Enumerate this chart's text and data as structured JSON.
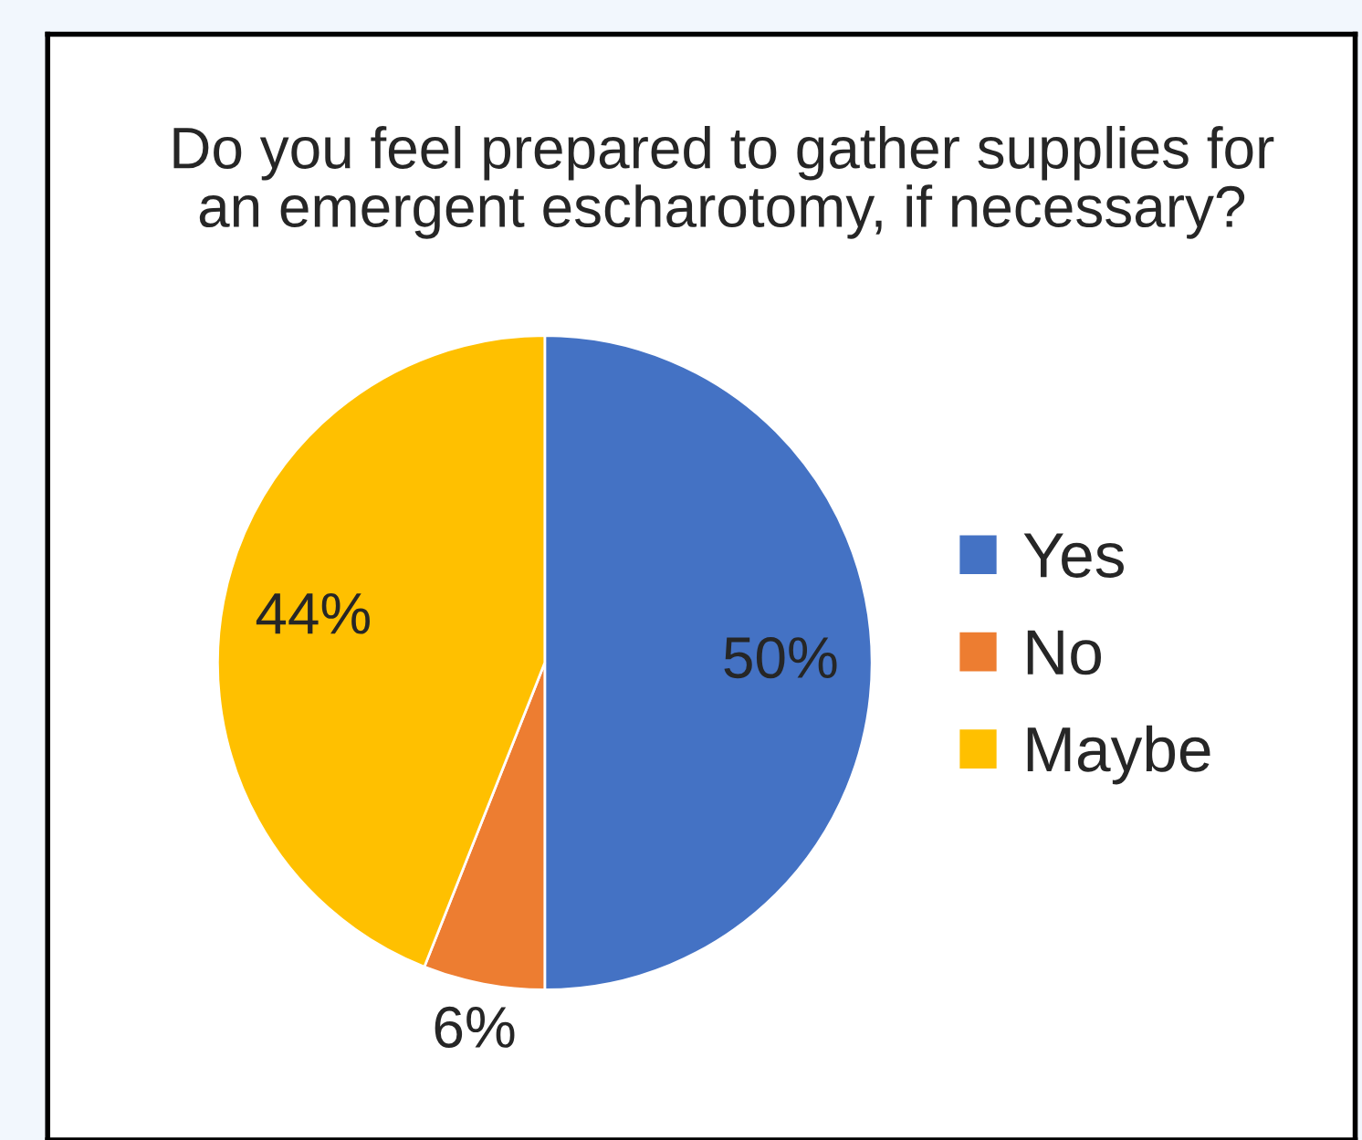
{
  "chart_data": {
    "type": "pie",
    "title": "Do you feel prepared to gather supplies for\nan emergent escharotomy, if necessary?",
    "categories": [
      "Yes",
      "No",
      "Maybe"
    ],
    "values": [
      50,
      6,
      44
    ],
    "colors": [
      "#4472c4",
      "#ed7d31",
      "#ffc000"
    ],
    "value_labels": [
      "50%",
      "6%",
      "44%"
    ],
    "legend": "right"
  }
}
